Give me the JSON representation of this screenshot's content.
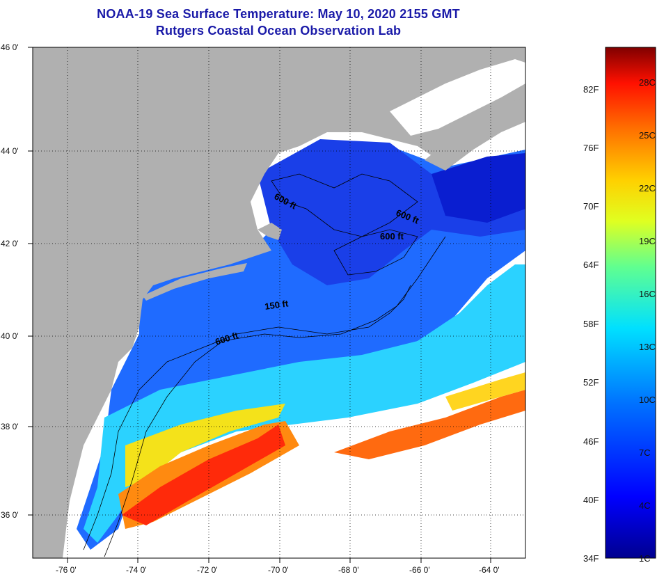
{
  "header": {
    "title": "NOAA-19 Sea Surface Temperature:  May 10, 2020 2155 GMT",
    "subtitle": "Rutgers Coastal Ocean Observation Lab"
  },
  "map": {
    "region": "US Northeast continental shelf / Gulf of Maine",
    "lat_range": [
      35,
      46
    ],
    "lon_range": [
      -77,
      -63
    ],
    "lat_labels": [
      "46 0'",
      "44 0'",
      "42 0'",
      "40 0'",
      "38 0'",
      "36 0'"
    ],
    "lon_labels": [
      "-76 0'",
      "-74 0'",
      "-72 0'",
      "-70 0'",
      "-68 0'",
      "-66 0'",
      "-64 0'"
    ],
    "colors": {
      "land": "#b0b0b0",
      "cloud": "#ffffff",
      "contour": "#000000"
    },
    "isobath_labels": [
      "600 ft",
      "600 ft",
      "600 ft",
      "150 ft",
      "600 ft"
    ]
  },
  "colorbar": {
    "fahrenheit_labels": [
      "82F",
      "76F",
      "70F",
      "64F",
      "58F",
      "52F",
      "46F",
      "40F",
      "34F"
    ],
    "celsius_labels": [
      "28C",
      "25C",
      "22C",
      "19C",
      "16C",
      "13C",
      "10C",
      "7C",
      "4C",
      "1C"
    ],
    "colors": [
      "#00008f",
      "#0000ff",
      "#0070ff",
      "#00e0ff",
      "#60ff90",
      "#e0ff20",
      "#ffd000",
      "#ff7000",
      "#ff1000",
      "#800000"
    ]
  }
}
